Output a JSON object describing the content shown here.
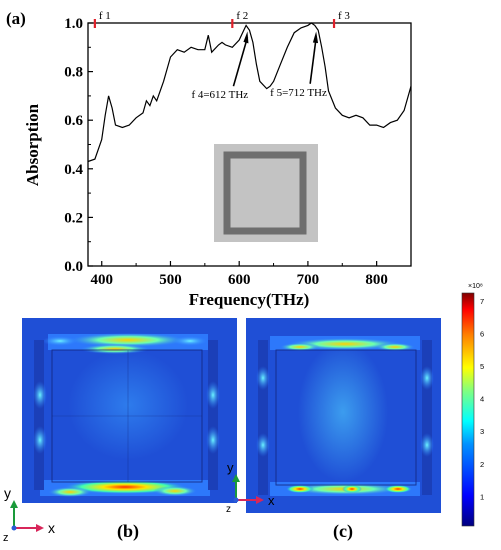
{
  "panel_a": {
    "label": "(a)",
    "chart_data": {
      "type": "line",
      "xlabel": "Frequency(THz)",
      "ylabel": "Absorption",
      "xlim": [
        380,
        850
      ],
      "ylim": [
        0.0,
        1.0
      ],
      "xticks": [
        400,
        500,
        600,
        700,
        800
      ],
      "yticks": [
        0.0,
        0.2,
        0.4,
        0.6,
        0.8,
        1.0
      ],
      "xtick_labels": [
        "400",
        "500",
        "600",
        "700",
        "800"
      ],
      "ytick_labels": [
        "0.0",
        "0.2",
        "0.4",
        "0.6",
        "0.8",
        "1.0"
      ],
      "grid": false,
      "x": [
        380,
        390,
        400,
        405,
        410,
        415,
        420,
        430,
        440,
        450,
        460,
        465,
        470,
        475,
        480,
        490,
        500,
        510,
        520,
        530,
        540,
        550,
        555,
        560,
        570,
        575,
        580,
        590,
        600,
        605,
        610,
        615,
        620,
        625,
        630,
        640,
        645,
        650,
        660,
        670,
        680,
        690,
        700,
        705,
        710,
        715,
        720,
        725,
        730,
        740,
        750,
        760,
        770,
        780,
        790,
        800,
        810,
        820,
        830,
        840,
        850
      ],
      "y": [
        0.43,
        0.44,
        0.52,
        0.62,
        0.7,
        0.65,
        0.58,
        0.57,
        0.58,
        0.61,
        0.63,
        0.68,
        0.66,
        0.7,
        0.68,
        0.76,
        0.86,
        0.89,
        0.88,
        0.9,
        0.89,
        0.89,
        0.95,
        0.88,
        0.91,
        0.92,
        0.91,
        0.9,
        0.93,
        0.96,
        0.99,
        0.97,
        0.92,
        0.83,
        0.76,
        0.73,
        0.74,
        0.76,
        0.83,
        0.9,
        0.96,
        0.98,
        0.99,
        1.0,
        0.99,
        0.97,
        0.9,
        0.82,
        0.72,
        0.65,
        0.62,
        0.61,
        0.62,
        0.61,
        0.58,
        0.58,
        0.57,
        0.59,
        0.6,
        0.64,
        0.74
      ],
      "markers": [
        {
          "label": "f 1",
          "x": 390
        },
        {
          "label": "f 2",
          "x": 590
        },
        {
          "label": "f 3",
          "x": 738
        }
      ],
      "annotations": [
        {
          "text": "f 4=612 THz",
          "x": 612,
          "y": 0.99
        },
        {
          "text": "f 5=712 THz",
          "x": 712,
          "y": 0.99
        }
      ],
      "colors": {
        "line": "#000000",
        "marker": "#e0202a",
        "inset_outer": "#c3c3c3",
        "inset_ring": "#6e6e6e"
      }
    }
  },
  "panel_b": {
    "label": "(b)",
    "axis_x": "x",
    "axis_y": "y",
    "axis_z": "z"
  },
  "panel_c": {
    "label": "(c)",
    "axis_x": "x",
    "axis_y": "y",
    "axis_z": "z"
  },
  "colorbar": {
    "multiplier": "×10⁸",
    "ticks": [
      1,
      2,
      3,
      4,
      5,
      6,
      7
    ],
    "tick_labels": [
      "1",
      "2",
      "3",
      "4",
      "5",
      "6",
      "7"
    ],
    "colors": [
      "#00007f",
      "#0000ff",
      "#0080ff",
      "#00ffff",
      "#80ff80",
      "#ffff00",
      "#ff8000",
      "#ff0000",
      "#7f0000"
    ]
  }
}
